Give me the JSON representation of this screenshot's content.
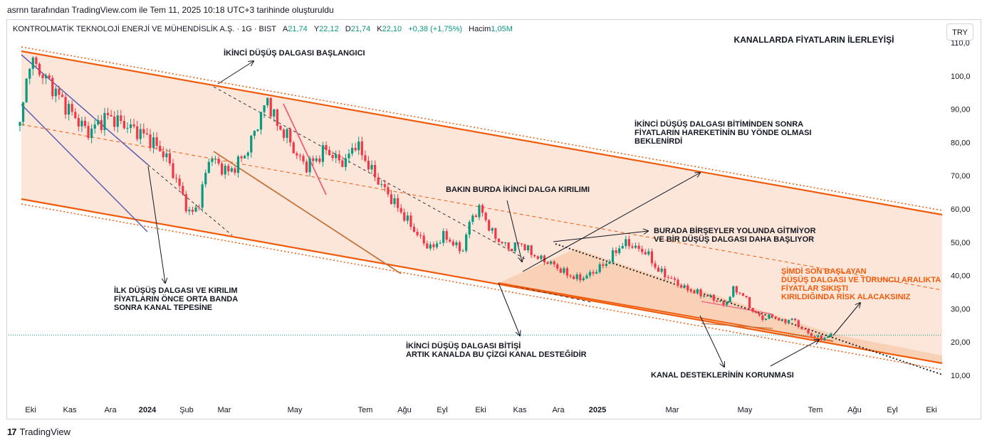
{
  "credit": "asrnn tarafından TradingView.com ile Tem 11, 2025 10:18 UTC+3 tarihinde oluşturuldu",
  "legend": {
    "symbol": "KONTROLMATİK TEKNOLOJİ ENERJİ VE MÜHENDİSLİK A.Ş. · 1G · BIST",
    "open_label": "A",
    "open": "21,74",
    "high_label": "Y",
    "high": "22,12",
    "low_label": "D",
    "low": "21,74",
    "close_label": "K",
    "close": "22,10",
    "change": "+0,38 (+1,75%)",
    "volume_label": "Hacim",
    "volume": "1,05M"
  },
  "currency_button": "TRY",
  "footer": {
    "logo": "17",
    "brand": "TradingView"
  },
  "colors": {
    "up": "#089981",
    "down": "#f23645",
    "channel": "#f15a0a",
    "fill": "#fbe2d3",
    "text": "#131722"
  },
  "chart_data": {
    "type": "candlestick",
    "title": "KANALLARDA FİYATLARIN İLERLEYİŞİ",
    "y_ticks": [
      "110,0",
      "100,0",
      "90,00",
      "80,00",
      "70,00",
      "60,00",
      "50,00",
      "40,00",
      "30,00",
      "20,00",
      "10,00"
    ],
    "x_ticks": [
      "Eki",
      "Kas",
      "Ara",
      "2024",
      "Şub",
      "Mar",
      "May",
      "Tem",
      "Ağu",
      "Eyl",
      "Eki",
      "Kas",
      "Ara",
      "2025",
      "Mar",
      "May",
      "Tem",
      "Ağu",
      "Eyl",
      "Eki"
    ],
    "ylim": [
      10,
      110
    ],
    "last_price": 22.1,
    "close_path": [
      [
        0,
        85
      ],
      [
        2,
        105
      ],
      [
        6,
        98
      ],
      [
        10,
        90
      ],
      [
        14,
        83
      ],
      [
        18,
        88
      ],
      [
        22,
        85
      ],
      [
        26,
        82
      ],
      [
        30,
        76
      ],
      [
        33,
        66
      ],
      [
        35,
        58
      ],
      [
        37,
        62
      ],
      [
        39,
        76
      ],
      [
        41,
        73
      ],
      [
        43,
        71
      ],
      [
        45,
        74
      ],
      [
        47,
        78
      ],
      [
        49,
        86
      ],
      [
        51,
        93
      ],
      [
        53,
        85
      ],
      [
        55,
        82
      ],
      [
        57,
        76
      ],
      [
        59,
        73
      ],
      [
        61,
        75
      ],
      [
        63,
        78
      ],
      [
        65,
        75
      ],
      [
        67,
        74
      ],
      [
        69,
        80
      ],
      [
        71,
        75
      ],
      [
        73,
        70
      ],
      [
        75,
        66
      ],
      [
        77,
        62
      ],
      [
        79,
        58
      ],
      [
        81,
        54
      ],
      [
        83,
        50
      ],
      [
        85,
        48
      ],
      [
        87,
        52
      ],
      [
        89,
        50
      ],
      [
        91,
        47
      ],
      [
        93,
        58
      ],
      [
        95,
        60
      ],
      [
        97,
        53
      ],
      [
        99,
        50
      ],
      [
        101,
        48
      ],
      [
        103,
        50
      ],
      [
        105,
        47
      ],
      [
        107,
        45
      ],
      [
        109,
        44
      ],
      [
        111,
        42
      ],
      [
        113,
        40
      ],
      [
        115,
        39
      ],
      [
        117,
        40
      ],
      [
        119,
        42
      ],
      [
        121,
        44
      ],
      [
        123,
        48
      ],
      [
        125,
        50
      ],
      [
        127,
        48
      ],
      [
        129,
        47
      ],
      [
        131,
        42
      ],
      [
        133,
        40
      ],
      [
        135,
        38
      ],
      [
        137,
        36
      ],
      [
        139,
        35
      ],
      [
        141,
        34
      ],
      [
        143,
        33
      ],
      [
        145,
        31
      ],
      [
        147,
        36
      ],
      [
        149,
        34
      ],
      [
        151,
        29
      ],
      [
        153,
        27
      ],
      [
        155,
        28
      ],
      [
        157,
        26
      ],
      [
        159,
        27
      ],
      [
        161,
        24
      ],
      [
        163,
        22
      ],
      [
        165,
        21
      ],
      [
        167,
        22
      ]
    ],
    "annotations": [
      "İKİNCİ DÜŞÜŞ DALGASI BAŞLANGICI",
      "İKİNCİ DÜŞÜŞ DALGASI BİTİMİNDEN SONRA",
      "FİYATLARIN HAREKETİNİN BU YÖNDE OLMASI",
      "BEKLENİRDİ",
      "BAKIN BURDA İKİNCİ DALGA KIRILIMI",
      "BURADA BİRŞEYLER YOLUNDA GİTMİYOR",
      "VE BİR DÜŞÜŞ DALGASI DAHA BAŞLIYOR",
      "ŞİMDİ SON BAŞLAYAN",
      "DÜŞÜŞ DALGASI VE TURUNCU ARALIKTA",
      "FİYATLAR SIKIŞTI",
      "KIRILDIĞINDA RİSK ALACAKSINIZ",
      "İLK DÜŞÜŞ DALGASI VE KIRILIM",
      "FİYATLARIN ÖNCE ORTA BANDA",
      "SONRA KANAL TEPESİNE",
      "İKİNCİ DÜŞÜŞ DALGASI BİTİŞİ",
      "ARTIK KANALDA BU ÇİZGİ KANAL DESTEĞİDİR",
      "KANAL DESTEKLERİNİN KORUNMASI"
    ]
  }
}
